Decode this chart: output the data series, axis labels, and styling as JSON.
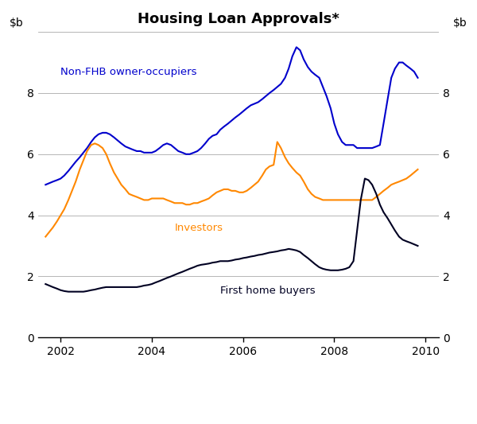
{
  "title": "Housing Loan Approvals*",
  "ylim": [
    0,
    10
  ],
  "yticks": [
    0,
    2,
    4,
    6,
    8,
    10
  ],
  "ytick_labels": [
    "0",
    "2",
    "4",
    "6",
    "8",
    ""
  ],
  "xlim_start": 2001.5,
  "xlim_end": 2010.3,
  "xticks": [
    2002,
    2004,
    2006,
    2008,
    2010
  ],
  "line_colors": {
    "non_fhb": "#0000cc",
    "investors": "#ff8800",
    "fhb": "#000022"
  },
  "labels": {
    "non_fhb": "Non-FHB owner-occupiers",
    "investors": "Investors",
    "fhb": "First home buyers"
  },
  "label_positions": {
    "non_fhb": [
      2002.0,
      8.6
    ],
    "investors": [
      2004.5,
      3.5
    ],
    "fhb": [
      2005.5,
      1.45
    ]
  },
  "non_fhb_x": [
    2001.67,
    2001.75,
    2001.83,
    2001.92,
    2002.0,
    2002.08,
    2002.17,
    2002.25,
    2002.33,
    2002.42,
    2002.5,
    2002.58,
    2002.67,
    2002.75,
    2002.83,
    2002.92,
    2003.0,
    2003.08,
    2003.17,
    2003.25,
    2003.33,
    2003.42,
    2003.5,
    2003.58,
    2003.67,
    2003.75,
    2003.83,
    2003.92,
    2004.0,
    2004.08,
    2004.17,
    2004.25,
    2004.33,
    2004.42,
    2004.5,
    2004.58,
    2004.67,
    2004.75,
    2004.83,
    2004.92,
    2005.0,
    2005.08,
    2005.17,
    2005.25,
    2005.33,
    2005.42,
    2005.5,
    2005.58,
    2005.67,
    2005.75,
    2005.83,
    2005.92,
    2006.0,
    2006.08,
    2006.17,
    2006.25,
    2006.33,
    2006.42,
    2006.5,
    2006.58,
    2006.67,
    2006.75,
    2006.83,
    2006.92,
    2007.0,
    2007.08,
    2007.17,
    2007.25,
    2007.33,
    2007.42,
    2007.5,
    2007.58,
    2007.67,
    2007.75,
    2007.83,
    2007.92,
    2008.0,
    2008.08,
    2008.17,
    2008.25,
    2008.33,
    2008.42,
    2008.5,
    2008.58,
    2008.67,
    2008.75,
    2008.83,
    2008.92,
    2009.0,
    2009.08,
    2009.17,
    2009.25,
    2009.33,
    2009.42,
    2009.5,
    2009.58,
    2009.67,
    2009.75,
    2009.83
  ],
  "non_fhb_y": [
    5.0,
    5.05,
    5.1,
    5.15,
    5.2,
    5.3,
    5.45,
    5.6,
    5.75,
    5.9,
    6.05,
    6.2,
    6.4,
    6.55,
    6.65,
    6.7,
    6.7,
    6.65,
    6.55,
    6.45,
    6.35,
    6.25,
    6.2,
    6.15,
    6.1,
    6.1,
    6.05,
    6.05,
    6.05,
    6.1,
    6.2,
    6.3,
    6.35,
    6.3,
    6.2,
    6.1,
    6.05,
    6.0,
    6.0,
    6.05,
    6.1,
    6.2,
    6.35,
    6.5,
    6.6,
    6.65,
    6.8,
    6.9,
    7.0,
    7.1,
    7.2,
    7.3,
    7.4,
    7.5,
    7.6,
    7.65,
    7.7,
    7.8,
    7.9,
    8.0,
    8.1,
    8.2,
    8.3,
    8.5,
    8.8,
    9.2,
    9.5,
    9.4,
    9.1,
    8.85,
    8.7,
    8.6,
    8.5,
    8.2,
    7.9,
    7.5,
    7.0,
    6.65,
    6.4,
    6.3,
    6.3,
    6.3,
    6.2,
    6.2,
    6.2,
    6.2,
    6.2,
    6.25,
    6.3,
    7.0,
    7.8,
    8.5,
    8.8,
    9.0,
    9.0,
    8.9,
    8.8,
    8.7,
    8.5
  ],
  "investors_x": [
    2001.67,
    2001.75,
    2001.83,
    2001.92,
    2002.0,
    2002.08,
    2002.17,
    2002.25,
    2002.33,
    2002.42,
    2002.5,
    2002.58,
    2002.67,
    2002.75,
    2002.83,
    2002.92,
    2003.0,
    2003.08,
    2003.17,
    2003.25,
    2003.33,
    2003.42,
    2003.5,
    2003.58,
    2003.67,
    2003.75,
    2003.83,
    2003.92,
    2004.0,
    2004.08,
    2004.17,
    2004.25,
    2004.33,
    2004.42,
    2004.5,
    2004.58,
    2004.67,
    2004.75,
    2004.83,
    2004.92,
    2005.0,
    2005.08,
    2005.17,
    2005.25,
    2005.33,
    2005.42,
    2005.5,
    2005.58,
    2005.67,
    2005.75,
    2005.83,
    2005.92,
    2006.0,
    2006.08,
    2006.17,
    2006.25,
    2006.33,
    2006.42,
    2006.5,
    2006.58,
    2006.67,
    2006.75,
    2006.83,
    2006.92,
    2007.0,
    2007.08,
    2007.17,
    2007.25,
    2007.33,
    2007.42,
    2007.5,
    2007.58,
    2007.67,
    2007.75,
    2007.83,
    2007.92,
    2008.0,
    2008.08,
    2008.17,
    2008.25,
    2008.33,
    2008.42,
    2008.5,
    2008.58,
    2008.67,
    2008.75,
    2008.83,
    2008.92,
    2009.0,
    2009.08,
    2009.17,
    2009.25,
    2009.33,
    2009.42,
    2009.5,
    2009.58,
    2009.67,
    2009.75,
    2009.83
  ],
  "investors_y": [
    3.3,
    3.45,
    3.6,
    3.8,
    4.0,
    4.2,
    4.5,
    4.8,
    5.1,
    5.5,
    5.8,
    6.1,
    6.3,
    6.35,
    6.3,
    6.2,
    6.0,
    5.7,
    5.4,
    5.2,
    5.0,
    4.85,
    4.7,
    4.65,
    4.6,
    4.55,
    4.5,
    4.5,
    4.55,
    4.55,
    4.55,
    4.55,
    4.5,
    4.45,
    4.4,
    4.4,
    4.4,
    4.35,
    4.35,
    4.4,
    4.4,
    4.45,
    4.5,
    4.55,
    4.65,
    4.75,
    4.8,
    4.85,
    4.85,
    4.8,
    4.8,
    4.75,
    4.75,
    4.8,
    4.9,
    5.0,
    5.1,
    5.3,
    5.5,
    5.6,
    5.65,
    6.4,
    6.2,
    5.9,
    5.7,
    5.55,
    5.4,
    5.3,
    5.1,
    4.85,
    4.7,
    4.6,
    4.55,
    4.5,
    4.5,
    4.5,
    4.5,
    4.5,
    4.5,
    4.5,
    4.5,
    4.5,
    4.5,
    4.5,
    4.5,
    4.5,
    4.5,
    4.6,
    4.7,
    4.8,
    4.9,
    5.0,
    5.05,
    5.1,
    5.15,
    5.2,
    5.3,
    5.4,
    5.5
  ],
  "fhb_x": [
    2001.67,
    2001.75,
    2001.83,
    2001.92,
    2002.0,
    2002.08,
    2002.17,
    2002.25,
    2002.33,
    2002.42,
    2002.5,
    2002.58,
    2002.67,
    2002.75,
    2002.83,
    2002.92,
    2003.0,
    2003.08,
    2003.17,
    2003.25,
    2003.33,
    2003.42,
    2003.5,
    2003.58,
    2003.67,
    2003.75,
    2003.83,
    2003.92,
    2004.0,
    2004.08,
    2004.17,
    2004.25,
    2004.33,
    2004.42,
    2004.5,
    2004.58,
    2004.67,
    2004.75,
    2004.83,
    2004.92,
    2005.0,
    2005.08,
    2005.17,
    2005.25,
    2005.33,
    2005.42,
    2005.5,
    2005.58,
    2005.67,
    2005.75,
    2005.83,
    2005.92,
    2006.0,
    2006.08,
    2006.17,
    2006.25,
    2006.33,
    2006.42,
    2006.5,
    2006.58,
    2006.67,
    2006.75,
    2006.83,
    2006.92,
    2007.0,
    2007.08,
    2007.17,
    2007.25,
    2007.33,
    2007.42,
    2007.5,
    2007.58,
    2007.67,
    2007.75,
    2007.83,
    2007.92,
    2008.0,
    2008.08,
    2008.17,
    2008.25,
    2008.33,
    2008.42,
    2008.5,
    2008.58,
    2008.67,
    2008.75,
    2008.83,
    2008.92,
    2009.0,
    2009.08,
    2009.17,
    2009.25,
    2009.33,
    2009.42,
    2009.5,
    2009.58,
    2009.67,
    2009.75,
    2009.83
  ],
  "fhb_y": [
    1.75,
    1.7,
    1.65,
    1.6,
    1.55,
    1.52,
    1.5,
    1.5,
    1.5,
    1.5,
    1.5,
    1.52,
    1.55,
    1.57,
    1.6,
    1.63,
    1.65,
    1.65,
    1.65,
    1.65,
    1.65,
    1.65,
    1.65,
    1.65,
    1.65,
    1.67,
    1.7,
    1.72,
    1.75,
    1.8,
    1.85,
    1.9,
    1.95,
    2.0,
    2.05,
    2.1,
    2.15,
    2.2,
    2.25,
    2.3,
    2.35,
    2.38,
    2.4,
    2.42,
    2.45,
    2.47,
    2.5,
    2.5,
    2.5,
    2.52,
    2.55,
    2.57,
    2.6,
    2.62,
    2.65,
    2.67,
    2.7,
    2.72,
    2.75,
    2.78,
    2.8,
    2.82,
    2.85,
    2.87,
    2.9,
    2.88,
    2.85,
    2.8,
    2.7,
    2.6,
    2.5,
    2.4,
    2.3,
    2.25,
    2.22,
    2.2,
    2.2,
    2.2,
    2.22,
    2.25,
    2.3,
    2.5,
    3.5,
    4.5,
    5.2,
    5.15,
    5.0,
    4.7,
    4.35,
    4.1,
    3.9,
    3.7,
    3.5,
    3.3,
    3.2,
    3.15,
    3.1,
    3.05,
    3.0
  ]
}
